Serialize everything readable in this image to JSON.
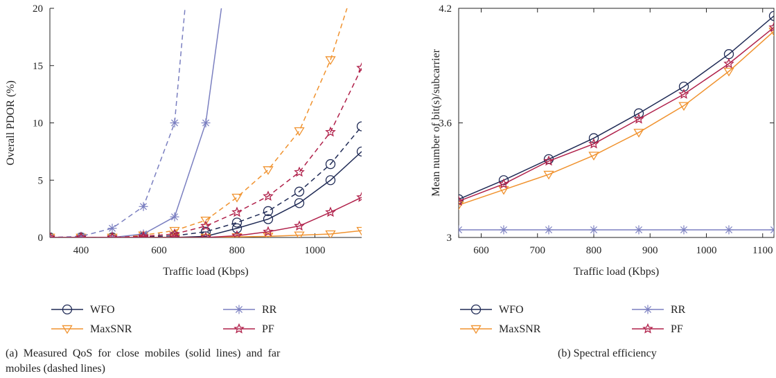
{
  "chart_data": [
    {
      "type": "line",
      "xlabel": "Traffic load (Kbps)",
      "ylabel": "Overall PDOR (%)",
      "xlim": [
        320,
        1120
      ],
      "ylim": [
        0,
        20
      ],
      "xticks": [
        400,
        600,
        800,
        1000
      ],
      "yticks": [
        0,
        5,
        10,
        15,
        20
      ],
      "x": [
        320,
        400,
        480,
        560,
        640,
        720,
        800,
        880,
        960,
        1040,
        1120
      ],
      "series": [
        {
          "name": "WFO",
          "group": "close",
          "dash": false,
          "marker": "circle",
          "color": "#1f2a55",
          "values": [
            0,
            0,
            0,
            0,
            0,
            0.1,
            0.8,
            1.6,
            3.0,
            5.0,
            7.5
          ]
        },
        {
          "name": "WFO",
          "group": "far",
          "dash": true,
          "marker": "circle",
          "color": "#1f2a55",
          "values": [
            0,
            0,
            0,
            0.05,
            0.15,
            0.5,
            1.3,
            2.3,
            4.0,
            6.4,
            9.7
          ]
        },
        {
          "name": "MaxSNR",
          "group": "close",
          "dash": false,
          "marker": "triangle",
          "color": "#f0922e",
          "values": [
            0,
            0,
            0,
            0,
            0,
            0,
            0.05,
            0.1,
            0.2,
            0.3,
            0.6
          ]
        },
        {
          "name": "MaxSNR",
          "group": "far",
          "dash": true,
          "marker": "triangle",
          "color": "#f0922e",
          "values": [
            0,
            0,
            0,
            0.2,
            0.6,
            1.5,
            3.5,
            5.9,
            9.3,
            15.5,
            24
          ]
        },
        {
          "name": "RR",
          "group": "close",
          "dash": false,
          "marker": "star",
          "color": "#7a7fc0",
          "values": [
            0,
            0,
            0,
            0.3,
            1.8,
            10,
            30,
            null,
            null,
            null,
            null
          ]
        },
        {
          "name": "RR",
          "group": "far",
          "dash": true,
          "marker": "star",
          "color": "#7a7fc0",
          "values": [
            0,
            0.1,
            0.8,
            2.7,
            10,
            40,
            null,
            null,
            null,
            null,
            null
          ]
        },
        {
          "name": "PF",
          "group": "close",
          "dash": false,
          "marker": "hexstar",
          "color": "#b0204a",
          "values": [
            0,
            0,
            0,
            0,
            0,
            0,
            0.15,
            0.5,
            1.0,
            2.2,
            3.5
          ]
        },
        {
          "name": "PF",
          "group": "far",
          "dash": true,
          "marker": "hexstar",
          "color": "#b0204a",
          "values": [
            0,
            0,
            0,
            0.1,
            0.3,
            1.0,
            2.2,
            3.6,
            5.7,
            9.2,
            14.8
          ]
        }
      ],
      "legend": [
        {
          "name": "WFO",
          "marker": "circle",
          "color": "#1f2a55"
        },
        {
          "name": "RR",
          "marker": "star",
          "color": "#7a7fc0"
        },
        {
          "name": "MaxSNR",
          "marker": "triangle",
          "color": "#f0922e"
        },
        {
          "name": "PF",
          "marker": "hexstar",
          "color": "#b0204a"
        }
      ],
      "caption": "(a) Measured QoS for close mobiles (solid lines) and far mobiles (dashed lines)",
      "caption_lines": [
        "(a)  Measured  QoS  for  close  mobiles  (solid  lines)  and  far",
        "mobiles (dashed lines)"
      ]
    },
    {
      "type": "line",
      "xlabel": "Traffic load (Kbps)",
      "ylabel": "Mean number of bit(s)/subcarrier",
      "xlim": [
        560,
        1120
      ],
      "ylim": [
        3,
        4.2
      ],
      "xticks": [
        600,
        700,
        800,
        900,
        1000,
        1100
      ],
      "yticks": [
        3,
        3.6,
        4.2
      ],
      "x": [
        560,
        640,
        720,
        800,
        880,
        960,
        1040,
        1120
      ],
      "series": [
        {
          "name": "WFO",
          "marker": "circle",
          "color": "#1f2a55",
          "values": [
            3.2,
            3.3,
            3.41,
            3.52,
            3.65,
            3.79,
            3.96,
            4.16
          ]
        },
        {
          "name": "MaxSNR",
          "marker": "triangle",
          "color": "#f0922e",
          "values": [
            3.17,
            3.25,
            3.33,
            3.43,
            3.55,
            3.69,
            3.87,
            4.08
          ]
        },
        {
          "name": "RR",
          "marker": "star",
          "color": "#7a7fc0",
          "values": [
            3.04,
            3.04,
            3.04,
            3.04,
            3.04,
            3.04,
            3.04,
            3.04
          ]
        },
        {
          "name": "PF",
          "marker": "hexstar",
          "color": "#b0204a",
          "values": [
            3.19,
            3.28,
            3.4,
            3.49,
            3.62,
            3.75,
            3.91,
            4.1
          ]
        }
      ],
      "legend": [
        {
          "name": "WFO",
          "marker": "circle",
          "color": "#1f2a55"
        },
        {
          "name": "RR",
          "marker": "star",
          "color": "#7a7fc0"
        },
        {
          "name": "MaxSNR",
          "marker": "triangle",
          "color": "#f0922e"
        },
        {
          "name": "PF",
          "marker": "hexstar",
          "color": "#b0204a"
        }
      ],
      "caption": "(b) Spectral efficiency"
    }
  ]
}
